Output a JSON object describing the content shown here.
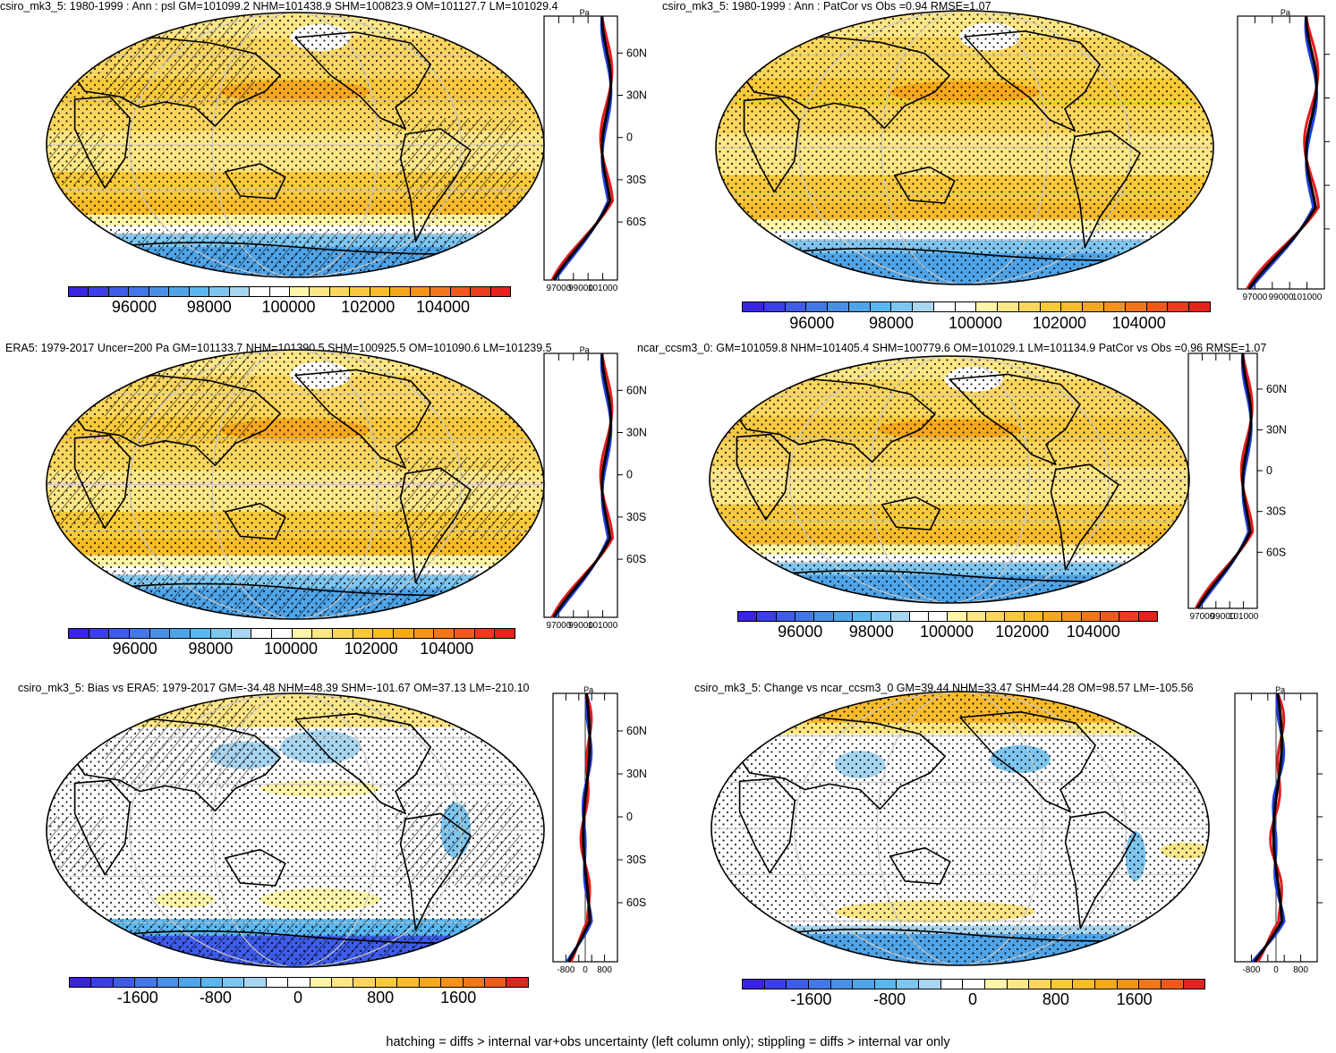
{
  "palettes": {
    "full": [
      "#3a24e0",
      "#3d3fe6",
      "#3f5ce8",
      "#4377e8",
      "#4a8fe6",
      "#4fa4e8",
      "#5ab6ee",
      "#7ec6ef",
      "#a8d5f0",
      "#ffffff",
      "#ffffff",
      "#fef5a8",
      "#fde685",
      "#fbd65e",
      "#f9c93c",
      "#f8bb2a",
      "#f6a81c",
      "#f4921a",
      "#f1761a",
      "#ee5a1c",
      "#ea3c1e",
      "#e2241e"
    ],
    "bias": [
      "#3a24e0",
      "#3d3fe6",
      "#3f5ce8",
      "#4377e8",
      "#4a8fe6",
      "#4fa4e8",
      "#5ab6ee",
      "#7ec6ef",
      "#a8d5f0",
      "#ffffff",
      "#ffffff",
      "#fef5a8",
      "#fde685",
      "#fbd65e",
      "#f9c93c",
      "#f8bb2a",
      "#f6a81c",
      "#f4921a",
      "#f1761a",
      "#ee5a1c",
      "#e2241e"
    ]
  },
  "lat_labels": [
    "60N",
    "30N",
    "0",
    "30S",
    "60S"
  ],
  "panels": [
    {
      "id": "p1",
      "title": "csiro_mk3_5: 1980-1999 : Ann : psl GM=101099.2 NHM=101438.9 SHM=100823.9 OM=101127.7 LM=101029.4",
      "units": "Pa",
      "palette": "full",
      "cbar_labels": [
        "96000",
        "98000",
        "100000",
        "102000",
        "104000"
      ],
      "profile_ticks": [
        "97000",
        "99000",
        "101000"
      ],
      "show_lat_labels": true,
      "hatched": true
    },
    {
      "id": "p2",
      "title": "csiro_mk3_5: 1980-1999 : Ann : PatCor vs Obs =0.94 RMSE=1.07",
      "units": "Pa",
      "palette": "full",
      "cbar_labels": [
        "96000",
        "98000",
        "100000",
        "102000",
        "104000"
      ],
      "profile_ticks": [
        "97000",
        "99000",
        "101000"
      ],
      "show_lat_labels": false,
      "hatched": false
    },
    {
      "id": "p3",
      "title": "ERA5: 1979-2017 Uncer=200 Pa GM=101133.7 NHM=101390.5 SHM=100925.5 OM=101090.6 LM=101239.5",
      "units": "Pa",
      "palette": "full",
      "cbar_labels": [
        "96000",
        "98000",
        "100000",
        "102000",
        "104000"
      ],
      "profile_ticks": [
        "97000",
        "99000",
        "101000"
      ],
      "show_lat_labels": true,
      "hatched": true
    },
    {
      "id": "p4",
      "title": "ncar_ccsm3_0: GM=101059.8 NHM=101405.4 SHM=100779.6 OM=101029.1 LM=101134.9 PatCor vs Obs =0.96 RMSE=1.07",
      "units": "",
      "palette": "full",
      "cbar_labels": [
        "96000",
        "98000",
        "100000",
        "102000",
        "104000"
      ],
      "profile_ticks": [
        "97000",
        "99000",
        "101000"
      ],
      "show_lat_labels": true,
      "hatched": false
    },
    {
      "id": "p5",
      "title": "csiro_mk3_5: Bias vs ERA5: 1979-2017 GM=-34.48 NHM=48.39 SHM=-101.67 OM=37.13 LM=-210.10",
      "units": "Pa",
      "palette": "bias",
      "cbar_labels": [
        "-1600",
        "-800",
        "0",
        "800",
        "1600"
      ],
      "profile_ticks": [
        "-800",
        "0",
        "800"
      ],
      "show_lat_labels": true,
      "hatched": true
    },
    {
      "id": "p6",
      "title": "csiro_mk3_5: Change vs ncar_ccsm3_0 GM=39.44 NHM=33.47 SHM=44.28 OM=98.57 LM=-105.56",
      "units": "Pa",
      "palette": "bias",
      "cbar_labels": [
        "-1600",
        "-800",
        "0",
        "800",
        "1600"
      ],
      "profile_ticks": [
        "-800",
        "0",
        "800"
      ],
      "show_lat_labels": false,
      "hatched": false
    }
  ],
  "footer": "hatching = diffs > internal var+obs uncertainty (left column only); stippling = diffs > internal var only"
}
